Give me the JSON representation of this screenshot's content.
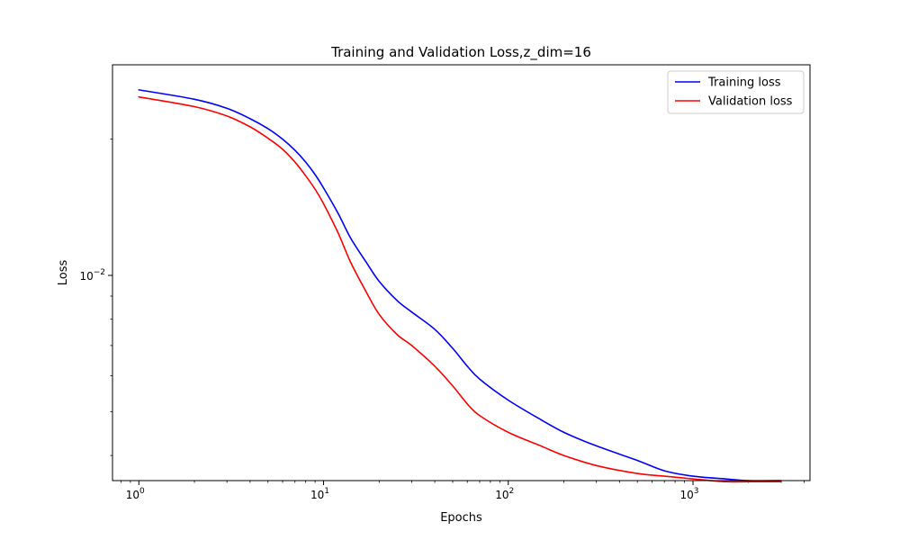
{
  "chart_data": {
    "type": "line",
    "title": "Training and Validation Loss,z_dim=16",
    "xlabel": "Epochs",
    "ylabel": "Loss",
    "xscale": "log",
    "yscale": "log",
    "xlim": [
      0.72,
      4300
    ],
    "ylim": [
      0.00352,
      0.0292
    ],
    "xticks": [
      {
        "value": 1,
        "label": "10",
        "exp": "0"
      },
      {
        "value": 10,
        "label": "10",
        "exp": "1"
      },
      {
        "value": 100,
        "label": "10",
        "exp": "2"
      },
      {
        "value": 1000,
        "label": "10",
        "exp": "3"
      }
    ],
    "yticks": [
      {
        "value": 0.01,
        "label": "10",
        "exp": "−2"
      }
    ],
    "grid": false,
    "legend_position": "top-right",
    "series": [
      {
        "name": "Training loss",
        "color": "#0000ff",
        "x": [
          1,
          2,
          3,
          4,
          5,
          6,
          7,
          8,
          9,
          10,
          12,
          14,
          17,
          20,
          25,
          30,
          40,
          50,
          60,
          70,
          100,
          150,
          200,
          300,
          500,
          700,
          1000,
          1500,
          2000,
          3000
        ],
        "y": [
          0.0257,
          0.0245,
          0.0234,
          0.0222,
          0.0211,
          0.02,
          0.0189,
          0.0178,
          0.0167,
          0.0156,
          0.0137,
          0.0121,
          0.0107,
          0.0097,
          0.0088,
          0.0083,
          0.0076,
          0.0069,
          0.0063,
          0.0059,
          0.0053,
          0.0048,
          0.0045,
          0.0042,
          0.0039,
          0.0037,
          0.0036,
          0.00355,
          0.00352,
          0.00352
        ]
      },
      {
        "name": "Validation loss",
        "color": "#ff0000",
        "x": [
          1,
          2,
          3,
          4,
          5,
          6,
          7,
          8,
          9,
          10,
          12,
          14,
          17,
          20,
          25,
          30,
          40,
          50,
          60,
          70,
          100,
          150,
          200,
          300,
          500,
          700,
          1000,
          1500,
          2000,
          3000
        ],
        "y": [
          0.0248,
          0.0236,
          0.0225,
          0.0213,
          0.0201,
          0.019,
          0.0178,
          0.0166,
          0.0155,
          0.0144,
          0.0124,
          0.0107,
          0.0092,
          0.0082,
          0.0074,
          0.007,
          0.0063,
          0.0057,
          0.0052,
          0.0049,
          0.0045,
          0.0042,
          0.004,
          0.0038,
          0.00365,
          0.0036,
          0.00355,
          0.0035,
          0.0035,
          0.0035
        ]
      }
    ]
  }
}
